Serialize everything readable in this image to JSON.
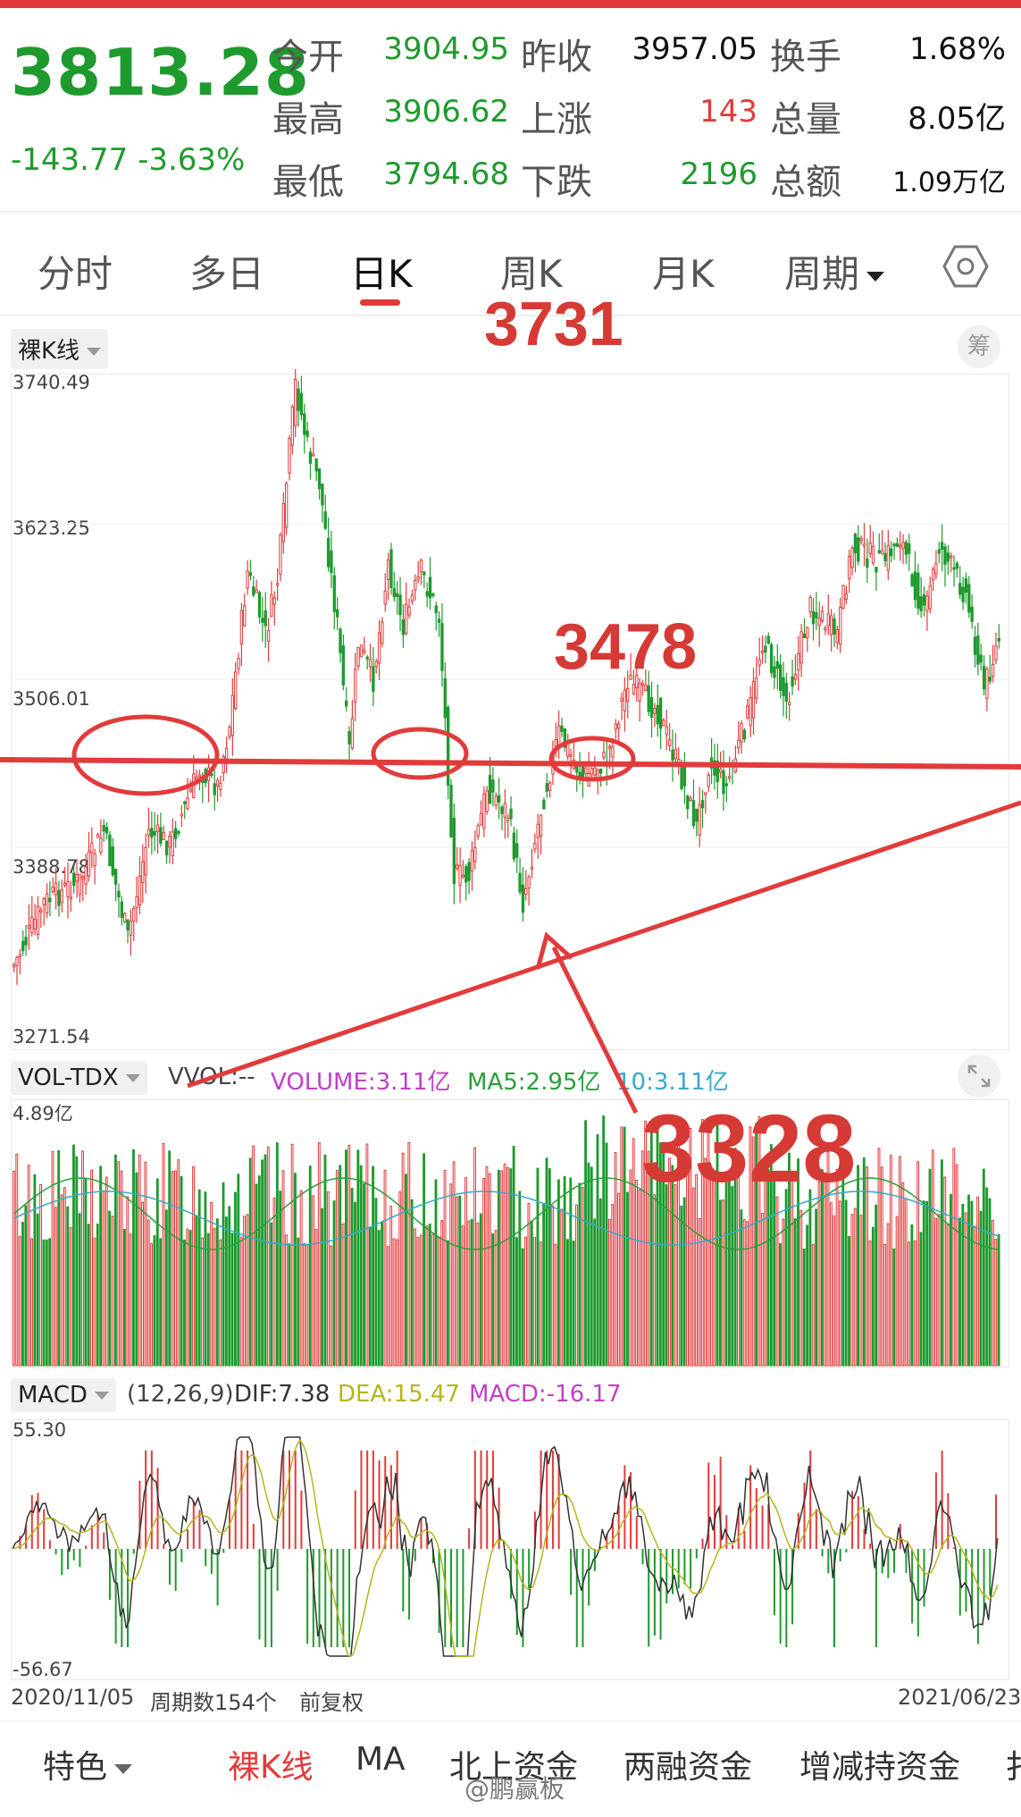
{
  "quote": {
    "price": "3813.28",
    "change": "-143.77",
    "change_pct": "-3.63%",
    "open_label": "今开",
    "open": "3904.95",
    "prev_close_label": "昨收",
    "prev_close": "3957.05",
    "turnover_label": "换手",
    "turnover": "1.68%",
    "high_label": "最高",
    "high": "3906.62",
    "up_label": "上涨",
    "up_count": "143",
    "volume_label": "总量",
    "volume": "8.05亿",
    "low_label": "最低",
    "low": "3794.68",
    "down_label": "下跌",
    "down_count": "2196",
    "amount_label": "总额",
    "amount": "1.09万亿"
  },
  "tabs": {
    "items": [
      "分时",
      "多日",
      "日K",
      "周K",
      "月K",
      "周期"
    ],
    "active": "日K",
    "settings_icon": "hexagon-settings-icon"
  },
  "kline": {
    "chip_label": "裸K线",
    "chip_right": "筹",
    "y_ticks": [
      "3740.49",
      "3623.25",
      "3506.01",
      "3388.78",
      "3271.54"
    ]
  },
  "volume": {
    "chip_label": "VOL-TDX",
    "vvol": "VVOL:--",
    "volume_text": "VOLUME:3.11亿",
    "ma5_text": "MA5:2.95亿",
    "ma10_text": "10:3.11亿",
    "y_top": "4.89亿",
    "colors": {
      "volume": "#c13fc7",
      "ma5": "#2aa03a",
      "ma10": "#36a9c9"
    }
  },
  "macd": {
    "chip_label": "MACD",
    "params": "(12,26,9)",
    "dif_text": "DIF:7.38",
    "dea_text": "DEA:15.47",
    "macd_text": "MACD:-16.17",
    "y_top": "55.30",
    "y_bottom": "-56.67",
    "colors": {
      "dif": "#333333",
      "dea": "#b5b51a",
      "macd": "#c13fc7"
    }
  },
  "footer": {
    "start_date": "2020/11/05",
    "period_count": "周期数154个",
    "adjust": "前复权",
    "end_date": "2021/06/23"
  },
  "annotations": {
    "top": "3731",
    "middle": "3478",
    "bottom": "3328"
  },
  "bottom_bar": {
    "items": [
      "特色",
      "裸K线",
      "MA",
      "北上资金",
      "两融资金",
      "增减持资金",
      "扌"
    ],
    "active": "裸K线"
  },
  "watermark": "@鹏赢板",
  "colors": {
    "up": "#e23b3b",
    "down": "#1f9a2e",
    "annotation": "#d63a35"
  }
}
